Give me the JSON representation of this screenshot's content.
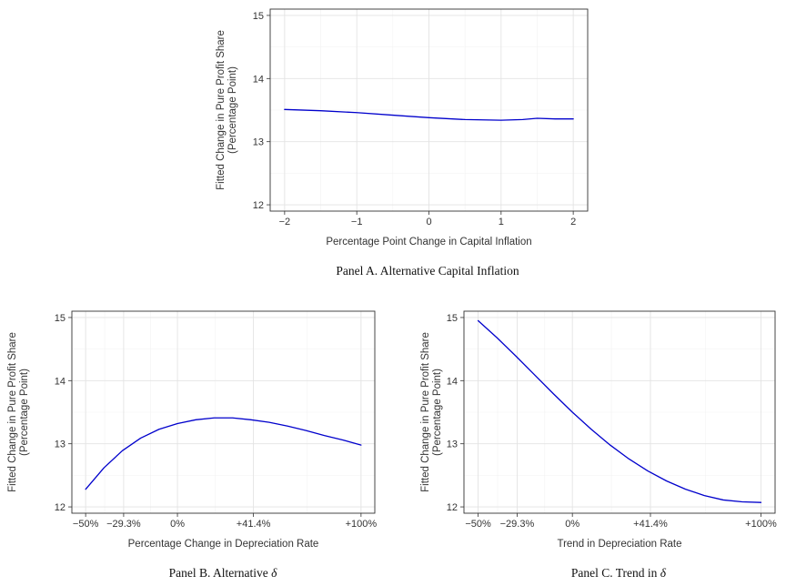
{
  "chart_data": [
    {
      "type": "line",
      "panel": "A",
      "caption": "Panel A. Alternative Capital Inflation",
      "xlabel": "Percentage Point Change in Capital Inflation",
      "ylabel_line1": "Fitted Change in Pure Profit Share",
      "ylabel_line2": "(Percentage Point)",
      "xlim": [
        -2.2,
        2.2
      ],
      "ylim": [
        11.9,
        15.1
      ],
      "x_ticks": [
        -2,
        -1,
        0,
        1,
        2
      ],
      "x_tick_labels": [
        "−2",
        "−1",
        "0",
        "1",
        "2"
      ],
      "y_ticks": [
        12,
        13,
        14,
        15
      ],
      "y_tick_labels": [
        "12",
        "13",
        "14",
        "15"
      ],
      "grid": true,
      "line_color": "#0000cc",
      "series": [
        {
          "x": [
            -2,
            -1.5,
            -1,
            -0.5,
            0,
            0.5,
            1,
            1.3,
            1.5,
            1.75,
            2
          ],
          "y": [
            13.51,
            13.49,
            13.46,
            13.42,
            13.38,
            13.35,
            13.34,
            13.35,
            13.37,
            13.36,
            13.36
          ]
        }
      ]
    },
    {
      "type": "line",
      "panel": "B",
      "caption_prefix": "Panel B. Alternative ",
      "caption_symbol": "δ",
      "xlabel": "Percentage Change in Depreciation Rate",
      "ylabel_line1": "Fitted Change in Pure Profit Share",
      "ylabel_line2": "(Percentage Point)",
      "xlim": [
        -0.575,
        1.075
      ],
      "ylim": [
        11.9,
        15.1
      ],
      "x_ticks": [
        -0.5,
        -0.293,
        0,
        0.414,
        1.0
      ],
      "x_tick_labels": [
        "−50%",
        "−29.3%",
        "0%",
        "+41.4%",
        "+100%"
      ],
      "y_ticks": [
        12,
        13,
        14,
        15
      ],
      "y_tick_labels": [
        "12",
        "13",
        "14",
        "15"
      ],
      "grid": true,
      "line_color": "#0000cc",
      "series": [
        {
          "x": [
            -0.5,
            -0.4,
            -0.3,
            -0.2,
            -0.1,
            0,
            0.1,
            0.2,
            0.3,
            0.4,
            0.5,
            0.6,
            0.7,
            0.8,
            0.9,
            1.0
          ],
          "y": [
            12.28,
            12.62,
            12.89,
            13.09,
            13.23,
            13.32,
            13.38,
            13.41,
            13.41,
            13.38,
            13.34,
            13.28,
            13.21,
            13.13,
            13.06,
            12.98
          ]
        }
      ]
    },
    {
      "type": "line",
      "panel": "C",
      "caption_prefix": "Panel C. Trend in ",
      "caption_symbol": "δ",
      "xlabel": "Trend in Depreciation Rate",
      "ylabel_line1": "Fitted Change in Pure Profit Share",
      "ylabel_line2": "(Percentage Point)",
      "xlim": [
        -0.575,
        1.075
      ],
      "ylim": [
        11.9,
        15.1
      ],
      "x_ticks": [
        -0.5,
        -0.293,
        0,
        0.414,
        1.0
      ],
      "x_tick_labels": [
        "−50%",
        "−29.3%",
        "0%",
        "+41.4%",
        "+100%"
      ],
      "y_ticks": [
        12,
        13,
        14,
        15
      ],
      "y_tick_labels": [
        "12",
        "13",
        "14",
        "15"
      ],
      "grid": true,
      "line_color": "#0000cc",
      "series": [
        {
          "x": [
            -0.5,
            -0.4,
            -0.3,
            -0.2,
            -0.1,
            0,
            0.1,
            0.2,
            0.3,
            0.4,
            0.5,
            0.6,
            0.7,
            0.8,
            0.9,
            1.0
          ],
          "y": [
            14.95,
            14.68,
            14.39,
            14.09,
            13.79,
            13.5,
            13.23,
            12.98,
            12.76,
            12.57,
            12.41,
            12.28,
            12.18,
            12.11,
            12.08,
            12.07
          ]
        }
      ]
    }
  ]
}
